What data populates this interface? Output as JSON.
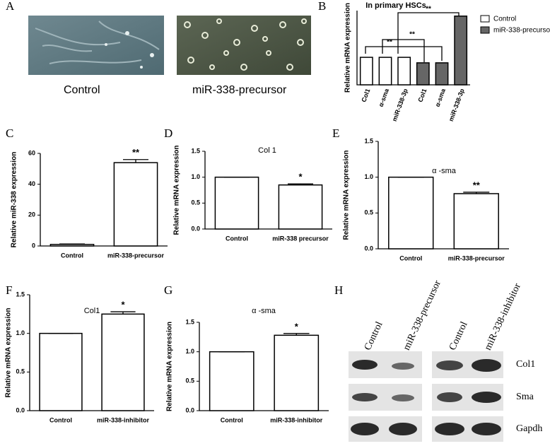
{
  "panel_labels": [
    "A",
    "B",
    "C",
    "D",
    "E",
    "F",
    "G",
    "H"
  ],
  "images": {
    "captions": [
      "Control",
      "miR-338-precursor"
    ]
  },
  "chart_data": [
    {
      "type": "bar",
      "title": "In primary HSCs",
      "ylabel": "Relative mRNA expression",
      "categories": [
        "Col1",
        "α-sma",
        "miR-338-3p",
        "Col1",
        "α-sma",
        "miR-338-3p"
      ],
      "series": [
        {
          "name": "Control",
          "color": "#ffffff",
          "values": [
            1,
            1,
            1,
            null,
            null,
            null
          ]
        },
        {
          "name": "miR-338-precursor",
          "color": "#666666",
          "values": [
            null,
            null,
            null,
            0.8,
            0.8,
            2.5
          ]
        }
      ],
      "annotations": [
        "**",
        "**",
        "**"
      ],
      "ylim": [
        0,
        2.7
      ]
    },
    {
      "type": "bar",
      "ylabel": "Relative miR-338 expression",
      "categories": [
        "Control",
        "miR-338-precursor"
      ],
      "values": [
        1,
        54
      ],
      "errors": [
        0.3,
        2
      ],
      "sig": [
        null,
        "**"
      ],
      "ylim": [
        0,
        60
      ],
      "yticks": [
        0,
        20,
        40,
        60
      ]
    },
    {
      "type": "bar",
      "title": "Col 1",
      "ylabel": "Relative mRNA expression",
      "categories": [
        "Control",
        "miR-338 precursor"
      ],
      "values": [
        1,
        0.85
      ],
      "errors": [
        0,
        0.02
      ],
      "sig": [
        null,
        "*"
      ],
      "ylim": [
        0,
        1.5
      ],
      "yticks": [
        {
          "value": 0,
          "label": "0.0"
        },
        {
          "value": 0.5,
          "label": "0.5"
        },
        {
          "value": 1,
          "label": "1.0"
        },
        {
          "value": 1.5,
          "label": "1.5"
        }
      ]
    },
    {
      "type": "bar",
      "title": "α -sma",
      "ylabel": "Relative mRNA expression",
      "categories": [
        "Control",
        "miR-338-precursor"
      ],
      "values": [
        1,
        0.77
      ],
      "errors": [
        0,
        0.02
      ],
      "sig": [
        null,
        "**"
      ],
      "ylim": [
        0,
        1.5
      ],
      "yticks": [
        {
          "value": 0,
          "label": "0.0"
        },
        {
          "value": 0.5,
          "label": "0.5"
        },
        {
          "value": 1,
          "label": "1.0"
        },
        {
          "value": 1.5,
          "label": "1.5"
        }
      ]
    },
    {
      "type": "bar",
      "title": "Col1",
      "ylabel": "Relative mRNA expression",
      "categories": [
        "Control",
        "miR-338-inhibitor"
      ],
      "values": [
        1,
        1.25
      ],
      "errors": [
        0,
        0.03
      ],
      "sig": [
        null,
        "*"
      ],
      "ylim": [
        0,
        1.5
      ],
      "yticks": [
        {
          "value": 0,
          "label": "0.0"
        },
        {
          "value": 0.5,
          "label": "0.5"
        },
        {
          "value": 1,
          "label": "1.0"
        },
        {
          "value": 1.5,
          "label": "1.5"
        }
      ]
    },
    {
      "type": "bar",
      "title": "α -sma",
      "ylabel": "Relative mRNA expression",
      "categories": [
        "Control",
        "miR-338-inhibitor"
      ],
      "values": [
        1,
        1.28
      ],
      "errors": [
        0,
        0.03
      ],
      "sig": [
        null,
        "*"
      ],
      "ylim": [
        0,
        1.5
      ],
      "yticks": [
        {
          "value": 0,
          "label": "0.0"
        },
        {
          "value": 0.5,
          "label": "0.5"
        },
        {
          "value": 1,
          "label": "1.0"
        },
        {
          "value": 1.5,
          "label": "1.5"
        }
      ]
    }
  ],
  "blot": {
    "columns": [
      "Control",
      "miR-338-precursor",
      "Control",
      "miR-338-inhibitor"
    ],
    "rows": [
      "Col1",
      "Sma",
      "Gapdh"
    ]
  }
}
